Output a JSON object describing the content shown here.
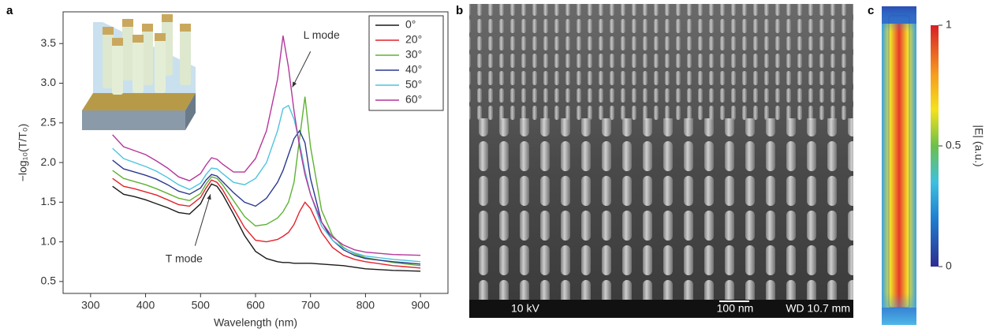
{
  "chart_data": [
    {
      "type": "line",
      "xlabel": "Wavelength (nm)",
      "ylabel": "−log₁₀(T/T₀)",
      "xlim": [
        250,
        950
      ],
      "ylim": [
        0.35,
        3.9
      ],
      "xticks": [
        300,
        400,
        500,
        600,
        700,
        800,
        900
      ],
      "yticks": [
        0.5,
        {
          "value": 1,
          "label": "1.0"
        },
        1.5,
        {
          "value": 2,
          "label": "2.0"
        },
        2.5,
        {
          "value": 3,
          "label": "3.0"
        },
        3.5
      ],
      "x": [
        340,
        360,
        380,
        400,
        420,
        440,
        460,
        480,
        500,
        510,
        520,
        530,
        540,
        560,
        580,
        600,
        620,
        640,
        650,
        660,
        670,
        680,
        690,
        700,
        720,
        740,
        760,
        780,
        800,
        850,
        900
      ],
      "series": [
        {
          "name": "0°",
          "color": "#1a1a1a",
          "values": [
            1.7,
            1.6,
            1.57,
            1.53,
            1.48,
            1.43,
            1.37,
            1.35,
            1.48,
            1.62,
            1.73,
            1.7,
            1.6,
            1.35,
            1.08,
            0.88,
            0.79,
            0.75,
            0.74,
            0.74,
            0.73,
            0.73,
            0.73,
            0.73,
            0.72,
            0.71,
            0.7,
            0.68,
            0.66,
            0.64,
            0.63
          ]
        },
        {
          "name": "20°",
          "color": "#e3222b",
          "values": [
            1.8,
            1.7,
            1.67,
            1.63,
            1.59,
            1.53,
            1.47,
            1.45,
            1.56,
            1.68,
            1.78,
            1.75,
            1.66,
            1.42,
            1.18,
            1.02,
            1.0,
            1.03,
            1.07,
            1.12,
            1.22,
            1.38,
            1.5,
            1.42,
            1.12,
            0.93,
            0.83,
            0.78,
            0.75,
            0.7,
            0.67
          ]
        },
        {
          "name": "30°",
          "color": "#5fb233",
          "values": [
            1.9,
            1.8,
            1.76,
            1.72,
            1.67,
            1.61,
            1.55,
            1.52,
            1.61,
            1.73,
            1.82,
            1.8,
            1.72,
            1.52,
            1.32,
            1.2,
            1.22,
            1.3,
            1.38,
            1.5,
            1.75,
            2.3,
            2.83,
            2.2,
            1.4,
            1.08,
            0.93,
            0.85,
            0.8,
            0.74,
            0.7
          ]
        },
        {
          "name": "40°",
          "color": "#2b3990",
          "values": [
            2.03,
            1.92,
            1.88,
            1.84,
            1.79,
            1.72,
            1.64,
            1.6,
            1.68,
            1.78,
            1.85,
            1.83,
            1.76,
            1.62,
            1.5,
            1.45,
            1.55,
            1.75,
            1.9,
            2.1,
            2.3,
            2.4,
            2.25,
            1.8,
            1.25,
            1.02,
            0.9,
            0.83,
            0.79,
            0.75,
            0.72
          ]
        },
        {
          "name": "50°",
          "color": "#4fc3df",
          "values": [
            2.18,
            2.05,
            2.0,
            1.95,
            1.89,
            1.81,
            1.72,
            1.66,
            1.74,
            1.85,
            1.93,
            1.92,
            1.86,
            1.75,
            1.72,
            1.8,
            2.0,
            2.4,
            2.68,
            2.72,
            2.55,
            2.25,
            1.9,
            1.6,
            1.2,
            1.02,
            0.92,
            0.86,
            0.82,
            0.78,
            0.75
          ]
        },
        {
          "name": "60°",
          "color": "#b5379a",
          "values": [
            2.35,
            2.2,
            2.15,
            2.1,
            2.02,
            1.93,
            1.82,
            1.77,
            1.86,
            1.97,
            2.06,
            2.04,
            1.98,
            1.88,
            1.88,
            2.05,
            2.4,
            3.05,
            3.6,
            3.2,
            2.65,
            2.2,
            1.85,
            1.6,
            1.25,
            1.06,
            0.96,
            0.9,
            0.87,
            0.84,
            0.83
          ]
        }
      ],
      "annotations": [
        "L mode",
        "T mode"
      ]
    },
    {
      "type": "colorbar",
      "label": "|E| (a.u.)",
      "clim": [
        0,
        1
      ],
      "cticks": [
        0,
        0.5,
        1
      ]
    }
  ],
  "panel_labels": [
    "a",
    "b",
    "c"
  ],
  "sem_image": {
    "labels": [
      "10 kV",
      "100 nm",
      "WD 10.7 mm"
    ]
  }
}
